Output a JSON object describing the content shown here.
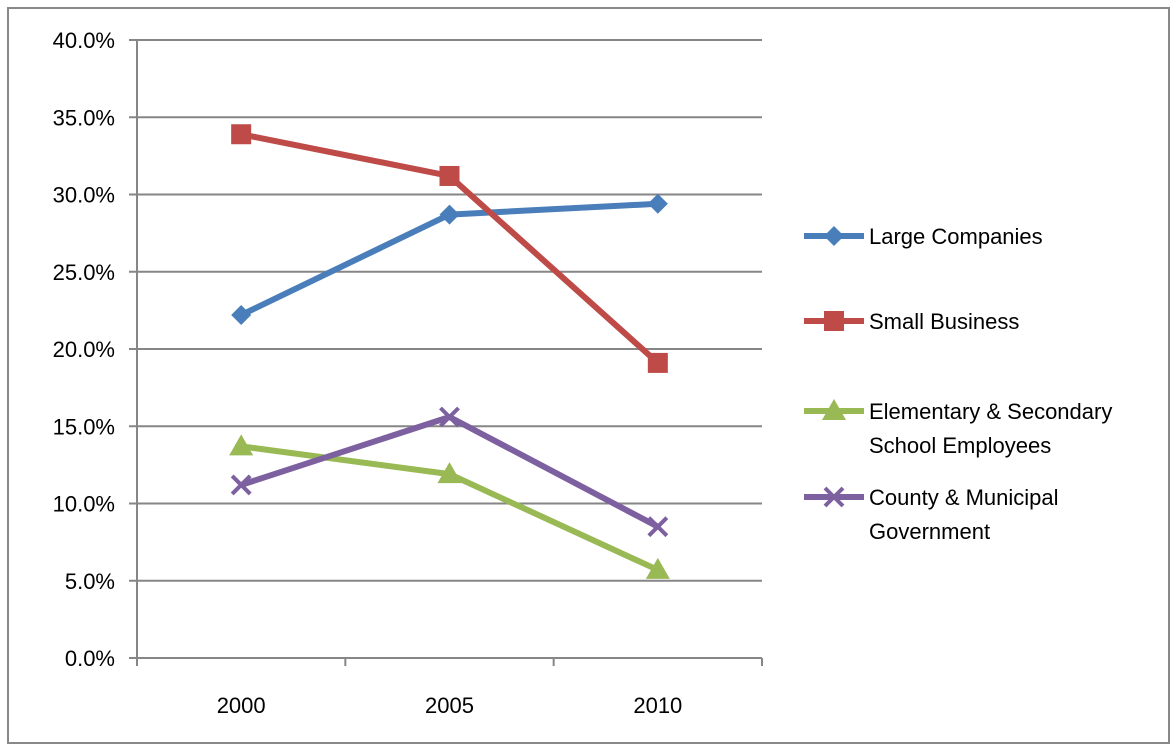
{
  "chart_data": {
    "type": "line",
    "title": "",
    "xlabel": "",
    "ylabel": "",
    "categories": [
      "2000",
      "2005",
      "2010"
    ],
    "ylim": [
      0,
      0.4
    ],
    "y_ticks": [
      {
        "value": 0.0,
        "label": "0.0%"
      },
      {
        "value": 0.05,
        "label": "5.0%"
      },
      {
        "value": 0.1,
        "label": "10.0%"
      },
      {
        "value": 0.15,
        "label": "15.0%"
      },
      {
        "value": 0.2,
        "label": "20.0%"
      },
      {
        "value": 0.25,
        "label": "25.0%"
      },
      {
        "value": 0.3,
        "label": "30.0%"
      },
      {
        "value": 0.35,
        "label": "35.0%"
      },
      {
        "value": 0.4,
        "label": "40.0%"
      }
    ],
    "grid": "horizontal",
    "legend_position": "right",
    "series": [
      {
        "name": "Large Companies",
        "legend_lines": [
          "Large Companies"
        ],
        "values": [
          0.222,
          0.287,
          0.294
        ],
        "color": "#4a7ebb",
        "marker": "diamond"
      },
      {
        "name": "Small Business",
        "legend_lines": [
          "Small Business"
        ],
        "values": [
          0.339,
          0.312,
          0.191
        ],
        "color": "#be4b48",
        "marker": "square"
      },
      {
        "name": "Elementary & Secondary School Employees",
        "legend_lines": [
          "Elementary & Secondary",
          "School Employees"
        ],
        "values": [
          0.137,
          0.119,
          0.057
        ],
        "color": "#98b954",
        "marker": "triangle"
      },
      {
        "name": "County & Municipal Government",
        "legend_lines": [
          "County & Municipal",
          "Government"
        ],
        "values": [
          0.112,
          0.156,
          0.085
        ],
        "color": "#7d60a0",
        "marker": "x"
      }
    ]
  }
}
